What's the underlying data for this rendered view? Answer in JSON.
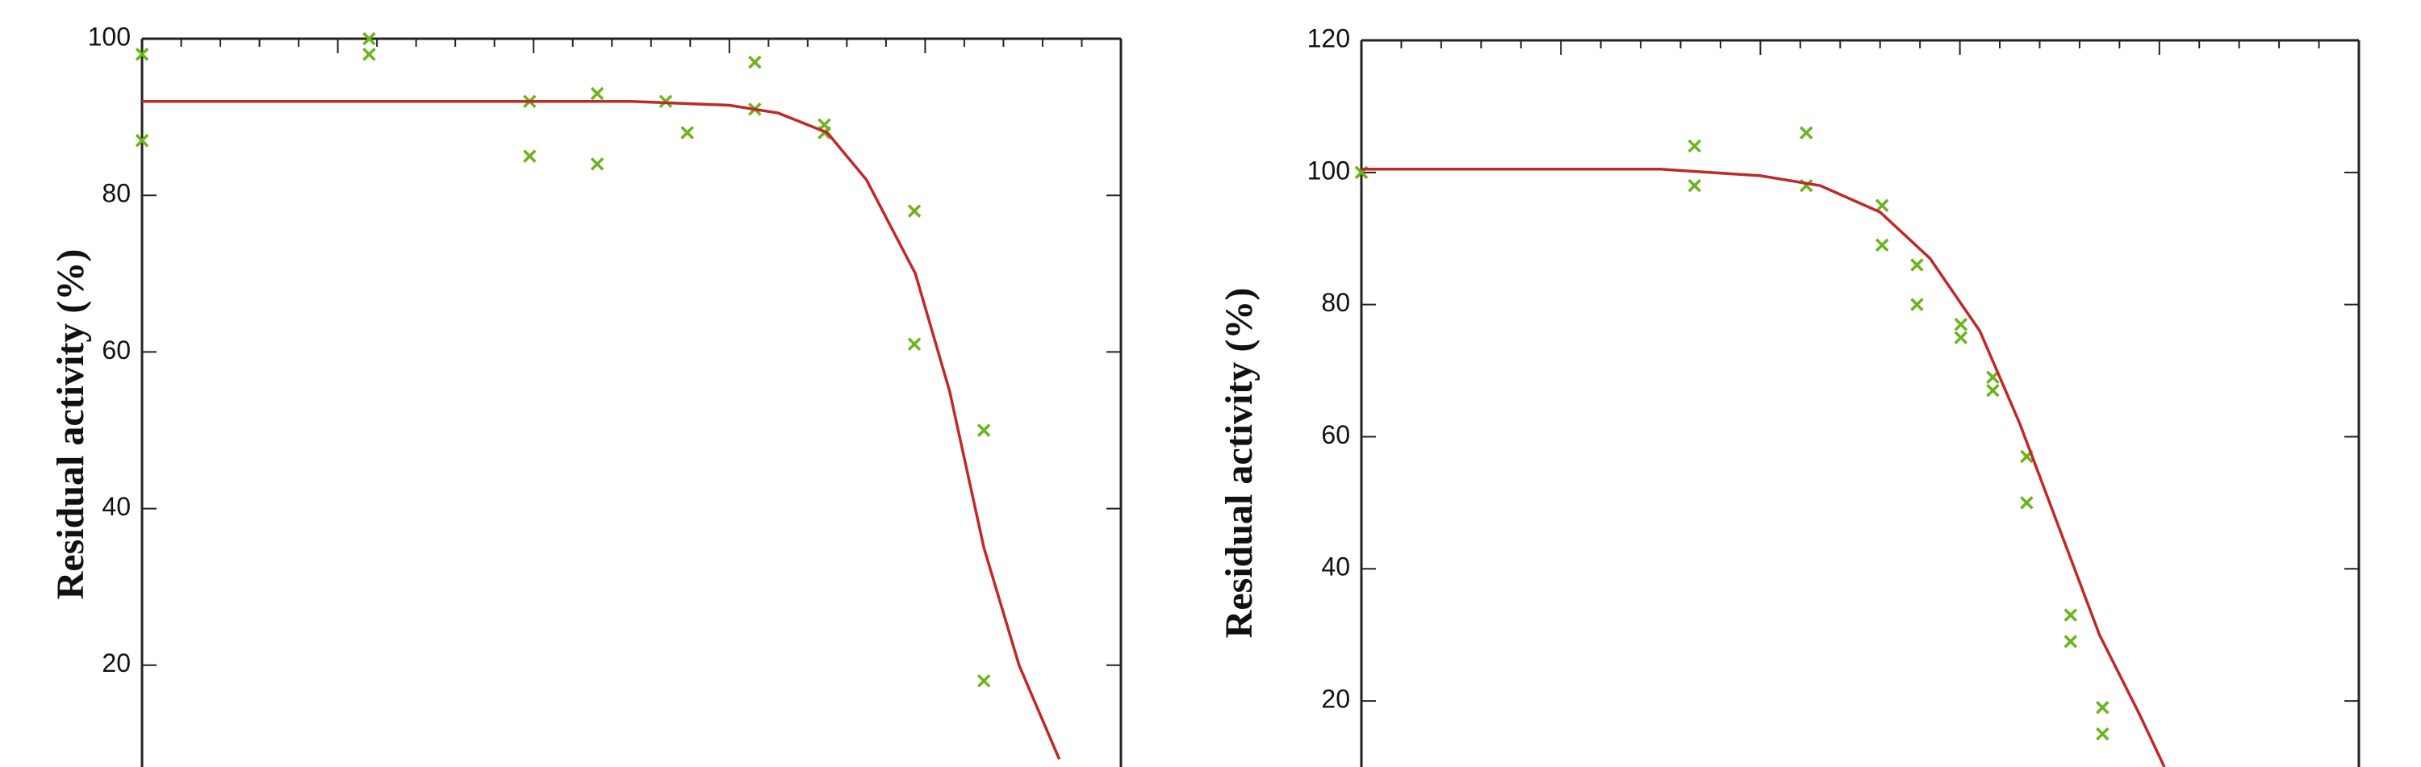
{
  "chart_data": [
    {
      "type": "scatter",
      "y_label": "Residual activity (%)",
      "xlim": [
        0,
        100
      ],
      "ylim": [
        7,
        100
      ],
      "yticks": [
        20,
        40,
        60,
        80,
        100
      ],
      "series": [
        {
          "mark": "x",
          "color": "#6cb31c",
          "x": [
            0,
            0,
            23.2,
            23.2,
            39.6,
            39.6,
            46.5,
            46.5,
            53.5,
            55.7,
            62.6,
            62.6,
            69.7,
            69.7,
            78.9,
            78.9,
            86,
            86
          ],
          "values": [
            98,
            87,
            100,
            98,
            92,
            85,
            93,
            84,
            92,
            88,
            97,
            91,
            89,
            88,
            78,
            61,
            50,
            18
          ]
        },
        {
          "mark": "line",
          "color": "#c0282a",
          "x": [
            0,
            50,
            60,
            65,
            70,
            74,
            79,
            82.5,
            86,
            89.6,
            93.7
          ],
          "values": [
            92,
            92,
            91.5,
            90.5,
            88,
            82,
            70,
            55,
            35,
            20,
            8
          ]
        }
      ]
    },
    {
      "type": "scatter",
      "y_label": "Residual activity (%)",
      "xlim": [
        0,
        100
      ],
      "ylim": [
        10,
        120
      ],
      "yticks": [
        20,
        40,
        60,
        80,
        100,
        120
      ],
      "series": [
        {
          "mark": "x",
          "color": "#6cb31c",
          "x": [
            0,
            0,
            33.4,
            33.4,
            44.6,
            44.6,
            52.2,
            52.2,
            55.7,
            55.7,
            60.1,
            60.1,
            63.3,
            63.3,
            66.7,
            66.7,
            71.1,
            71.1,
            74.3,
            74.3
          ],
          "values": [
            100,
            100,
            104,
            98,
            106,
            98,
            95,
            89,
            86,
            80,
            77,
            75,
            69,
            67,
            57,
            50,
            33,
            29,
            19,
            15
          ]
        },
        {
          "mark": "line",
          "color": "#c0282a",
          "x": [
            0,
            30,
            40,
            46,
            52,
            57,
            62,
            66,
            70,
            74,
            78,
            80.5
          ],
          "values": [
            100.5,
            100.5,
            99.5,
            98,
            94,
            87,
            76,
            62,
            46,
            30,
            18,
            10
          ]
        }
      ]
    }
  ]
}
